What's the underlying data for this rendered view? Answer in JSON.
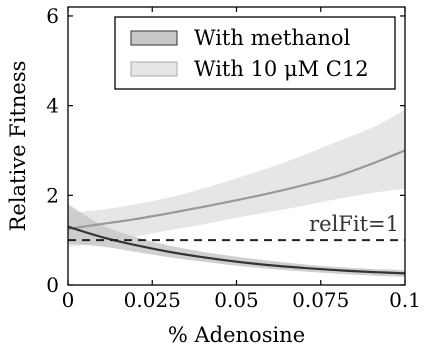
{
  "chart_data": {
    "type": "line",
    "xlabel": "% Adenosine",
    "ylabel": "Relative Fitness",
    "xlim": [
      0,
      0.1
    ],
    "ylim": [
      0,
      6.2
    ],
    "xticks": [
      "0",
      "0.025",
      "0.05",
      "0.075",
      "0.1"
    ],
    "xtick_values": [
      0,
      0.025,
      0.05,
      0.075,
      0.1
    ],
    "yticks": [
      "0",
      "2",
      "4",
      "6"
    ],
    "ytick_values": [
      0,
      2,
      4,
      6
    ],
    "grid": false,
    "legend": "top-right",
    "series": [
      {
        "name": "With methanol",
        "color": "#333333",
        "band_color": "#c8c8c8",
        "x": [
          0,
          0.01,
          0.02,
          0.03,
          0.04,
          0.05,
          0.06,
          0.07,
          0.08,
          0.09,
          0.1
        ],
        "y": [
          1.3,
          1.07,
          0.89,
          0.74,
          0.62,
          0.52,
          0.44,
          0.38,
          0.33,
          0.29,
          0.26
        ],
        "lower": [
          0.92,
          0.86,
          0.74,
          0.62,
          0.52,
          0.43,
          0.36,
          0.3,
          0.25,
          0.21,
          0.18
        ],
        "upper": [
          1.8,
          1.34,
          1.07,
          0.88,
          0.74,
          0.63,
          0.54,
          0.46,
          0.4,
          0.36,
          0.33
        ]
      },
      {
        "name": "With 10 μM C12",
        "color": "#999999",
        "band_color": "#e6e6e6",
        "x": [
          0,
          0.01,
          0.02,
          0.03,
          0.04,
          0.05,
          0.06,
          0.07,
          0.08,
          0.09,
          0.1
        ],
        "y": [
          1.25,
          1.36,
          1.47,
          1.6,
          1.74,
          1.89,
          2.05,
          2.23,
          2.43,
          2.7,
          3.0
        ],
        "lower": [
          0.85,
          0.95,
          1.08,
          1.22,
          1.35,
          1.5,
          1.63,
          1.77,
          1.92,
          2.05,
          2.15
        ],
        "upper": [
          1.6,
          1.68,
          1.8,
          1.95,
          2.15,
          2.38,
          2.62,
          2.9,
          3.2,
          3.5,
          3.9
        ]
      }
    ],
    "reference_line": {
      "y": 1,
      "label": "relFit=1"
    }
  }
}
